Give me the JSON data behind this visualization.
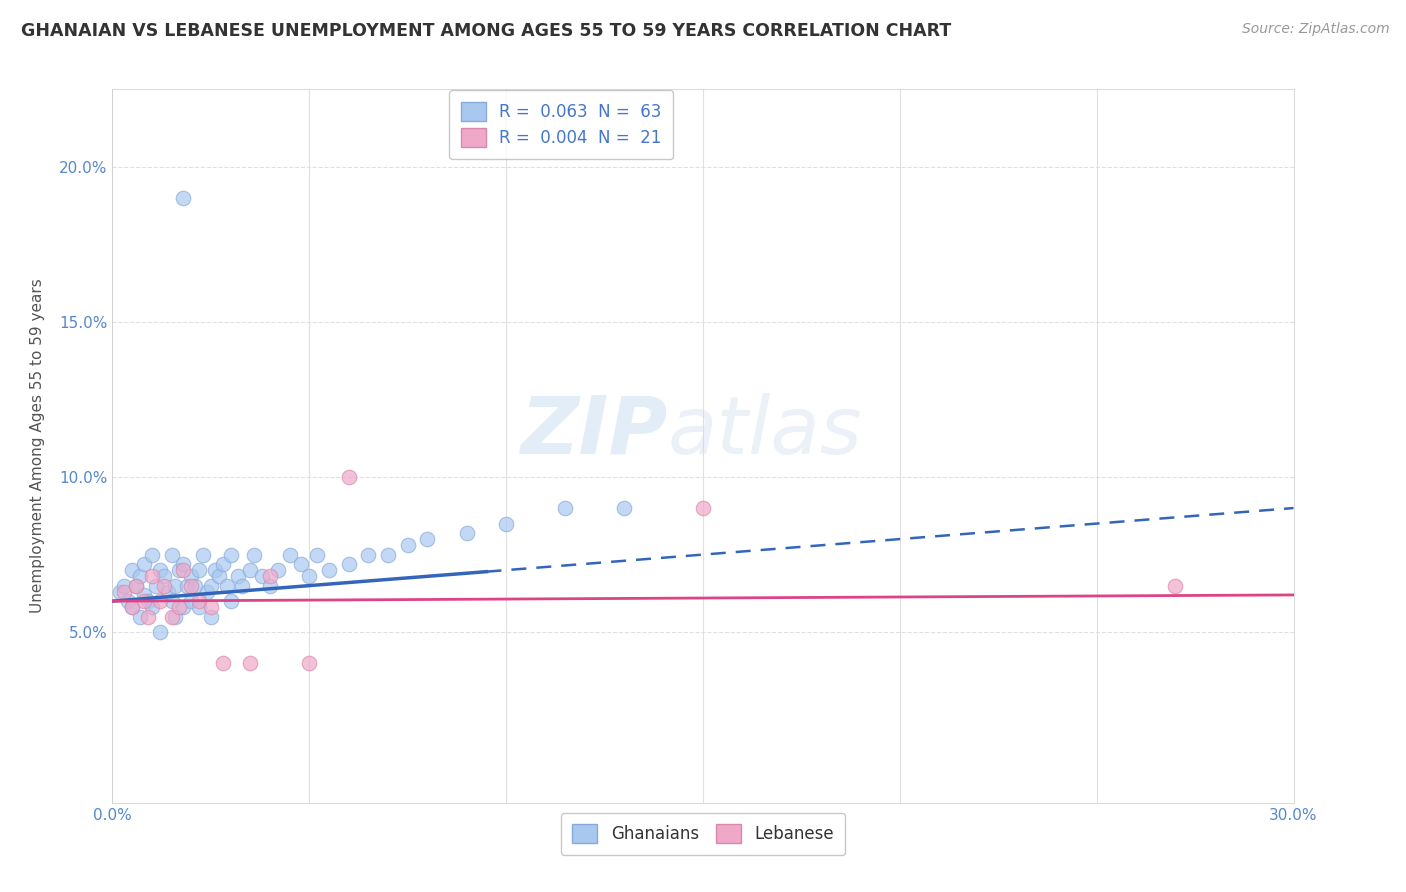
{
  "title": "GHANAIAN VS LEBANESE UNEMPLOYMENT AMONG AGES 55 TO 59 YEARS CORRELATION CHART",
  "source": "Source: ZipAtlas.com",
  "ylabel": "Unemployment Among Ages 55 to 59 years",
  "xlabel": "",
  "xlim": [
    0.0,
    0.3
  ],
  "ylim": [
    -0.005,
    0.225
  ],
  "xticks": [
    0.0,
    0.05,
    0.1,
    0.15,
    0.2,
    0.25,
    0.3
  ],
  "yticks": [
    0.0,
    0.05,
    0.1,
    0.15,
    0.2
  ],
  "ytick_labels": [
    "",
    "5.0%",
    "10.0%",
    "15.0%",
    "20.0%"
  ],
  "xtick_labels": [
    "0.0%",
    "",
    "",
    "",
    "",
    "",
    "30.0%"
  ],
  "legend1_label": "R =  0.063  N =  63",
  "legend2_label": "R =  0.004  N =  21",
  "ghanaian_color": "#a8c8f0",
  "lebanese_color": "#f0a8c8",
  "trend_ghanaian_color": "#3366bb",
  "trend_lebanese_color": "#dd4488",
  "watermark_zip": "ZIP",
  "watermark_atlas": "atlas",
  "background_color": "#ffffff",
  "grid_color": "#e0e0e0",
  "ghanaians_x": [
    0.002,
    0.003,
    0.004,
    0.005,
    0.005,
    0.006,
    0.007,
    0.007,
    0.008,
    0.008,
    0.009,
    0.01,
    0.01,
    0.011,
    0.012,
    0.012,
    0.013,
    0.014,
    0.015,
    0.015,
    0.016,
    0.016,
    0.017,
    0.018,
    0.018,
    0.019,
    0.02,
    0.02,
    0.021,
    0.022,
    0.022,
    0.023,
    0.024,
    0.025,
    0.025,
    0.026,
    0.027,
    0.028,
    0.029,
    0.03,
    0.03,
    0.032,
    0.033,
    0.035,
    0.036,
    0.038,
    0.04,
    0.042,
    0.045,
    0.048,
    0.05,
    0.052,
    0.055,
    0.06,
    0.065,
    0.07,
    0.075,
    0.08,
    0.09,
    0.1,
    0.115,
    0.13,
    0.018
  ],
  "ghanaians_y": [
    0.063,
    0.065,
    0.06,
    0.058,
    0.07,
    0.065,
    0.068,
    0.055,
    0.062,
    0.072,
    0.06,
    0.058,
    0.075,
    0.065,
    0.07,
    0.05,
    0.068,
    0.063,
    0.06,
    0.075,
    0.065,
    0.055,
    0.07,
    0.058,
    0.072,
    0.065,
    0.068,
    0.06,
    0.065,
    0.07,
    0.058,
    0.075,
    0.063,
    0.065,
    0.055,
    0.07,
    0.068,
    0.072,
    0.065,
    0.06,
    0.075,
    0.068,
    0.065,
    0.07,
    0.075,
    0.068,
    0.065,
    0.07,
    0.075,
    0.072,
    0.068,
    0.075,
    0.07,
    0.072,
    0.075,
    0.075,
    0.078,
    0.08,
    0.082,
    0.085,
    0.09,
    0.09,
    0.19
  ],
  "lebanese_x": [
    0.003,
    0.005,
    0.006,
    0.008,
    0.009,
    0.01,
    0.012,
    0.013,
    0.015,
    0.017,
    0.018,
    0.02,
    0.022,
    0.025,
    0.028,
    0.035,
    0.04,
    0.05,
    0.06,
    0.15,
    0.27
  ],
  "lebanese_y": [
    0.063,
    0.058,
    0.065,
    0.06,
    0.055,
    0.068,
    0.06,
    0.065,
    0.055,
    0.058,
    0.07,
    0.065,
    0.06,
    0.058,
    0.04,
    0.04,
    0.068,
    0.04,
    0.1,
    0.09,
    0.065
  ],
  "trend_gh_x0": 0.0,
  "trend_gh_x1": 0.3,
  "trend_gh_y0": 0.06,
  "trend_gh_y1": 0.09,
  "trend_gh_solid_end": 0.095,
  "trend_leb_x0": 0.0,
  "trend_leb_x1": 0.3,
  "trend_leb_y0": 0.06,
  "trend_leb_y1": 0.062
}
